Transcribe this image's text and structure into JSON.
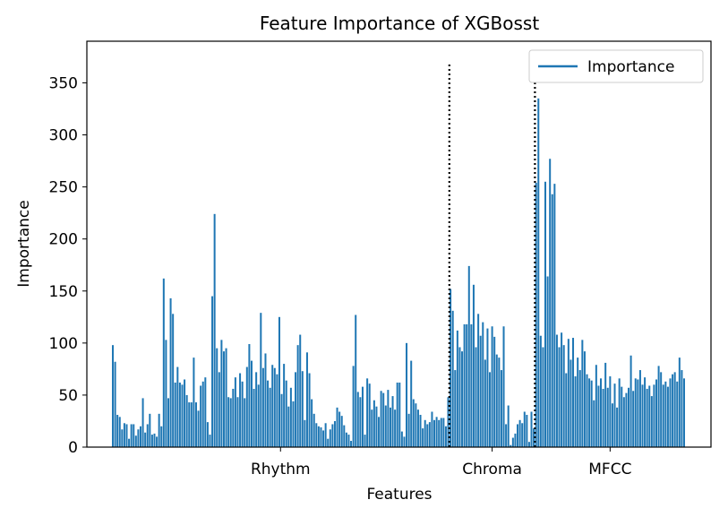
{
  "chart_data": {
    "type": "bar",
    "title": "Feature Importance of XGBosst",
    "xlabel": "Features",
    "ylabel": "Importance",
    "ylim": [
      0,
      390
    ],
    "yticks": [
      0,
      50,
      100,
      150,
      200,
      250,
      300,
      350
    ],
    "grid": false,
    "legend": {
      "position": "top-right",
      "entries": [
        "Importance"
      ]
    },
    "series_color": "#1f77b4",
    "group_labels": [
      "Rhythm",
      "Chroma",
      "MFCC"
    ],
    "group_dividers": {
      "style": "dotted",
      "color": "#000000",
      "top_value": 370
    },
    "series": [
      {
        "name": "Importance",
        "groups": [
          {
            "label": "Rhythm",
            "values": [
              98,
              82,
              31,
              29,
              17,
              23,
              22,
              8,
              22,
              22,
              11,
              17,
              20,
              47,
              14,
              22,
              32,
              12,
              13,
              10,
              32,
              20,
              162,
              103,
              47,
              143,
              128,
              62,
              77,
              62,
              60,
              65,
              50,
              43,
              43,
              86,
              43,
              35,
              59,
              63,
              67,
              24,
              12,
              145,
              224,
              95,
              72,
              103,
              92,
              95,
              48,
              47,
              56,
              67,
              48,
              71,
              63,
              47,
              77,
              99,
              83,
              56,
              72,
              60,
              129,
              76,
              90,
              64,
              57,
              79,
              76,
              70,
              125,
              51,
              80,
              64,
              39,
              57,
              44,
              72,
              98,
              108,
              73,
              26,
              91,
              71,
              46,
              32,
              23,
              20,
              19,
              16,
              23,
              8,
              17,
              22,
              25,
              38,
              34,
              30,
              21,
              14,
              12,
              6,
              78,
              127,
              53,
              48,
              58,
              12,
              66,
              61,
              36,
              45,
              39,
              29,
              54,
              52,
              40,
              55,
              38,
              49,
              36,
              62,
              62,
              15,
              10,
              100,
              32,
              83,
              46,
              42,
              36,
              31,
              18,
              26,
              22,
              24,
              34,
              26,
              29,
              26,
              28,
              28,
              20,
              48
            ]
          },
          {
            "label": "Chroma",
            "values": [
              152,
              131,
              74,
              112,
              96,
              92,
              118,
              118,
              174,
              118,
              156,
              96,
              128,
              107,
              120,
              84,
              114,
              72,
              116,
              106,
              89,
              86,
              74,
              116,
              22,
              40,
              2,
              9,
              13,
              22,
              26,
              23,
              34,
              31,
              5,
              34,
              18
            ]
          },
          {
            "label": "MFCC",
            "values": [
              254,
              335,
              107,
              96,
              255,
              164,
              277,
              243,
              253,
              108,
              96,
              110,
              98,
              71,
              104,
              84,
              105,
              68,
              86,
              74,
              103,
              92,
              70,
              66,
              64,
              45,
              79,
              59,
              66,
              56,
              81,
              57,
              68,
              42,
              61,
              38,
              66,
              58,
              48,
              52,
              57,
              88,
              54,
              66,
              65,
              74,
              60,
              67,
              56,
              59,
              49,
              60,
              65,
              78,
              72,
              60,
              63,
              58,
              66,
              70,
              72,
              63,
              86,
              74,
              66
            ]
          }
        ]
      }
    ]
  }
}
